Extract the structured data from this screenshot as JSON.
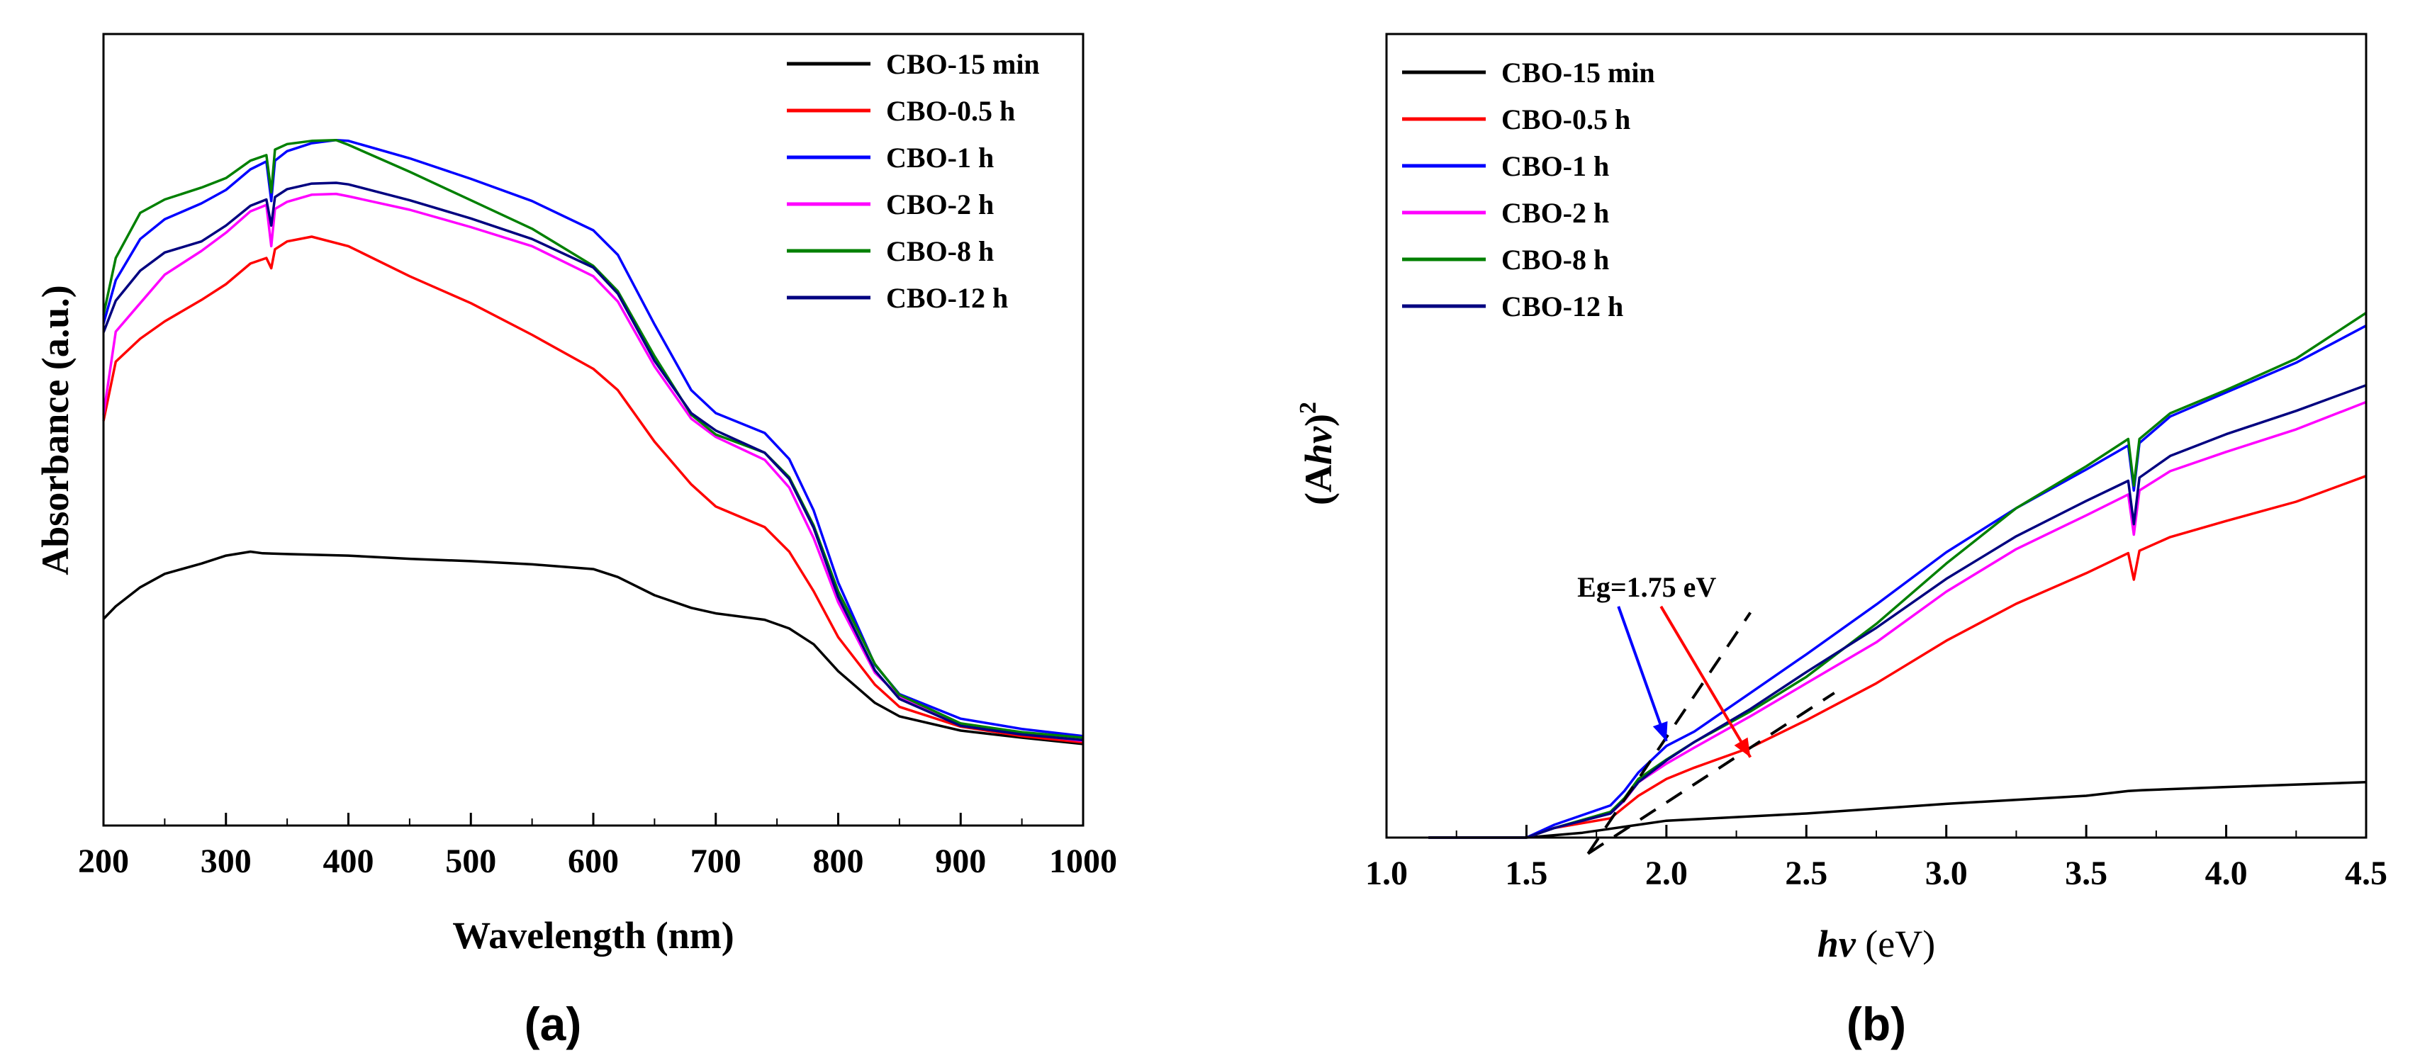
{
  "figure_labels": {
    "a": "(a)",
    "b": "(b)"
  },
  "chart_data": [
    {
      "type": "line",
      "panel": "a",
      "title": "",
      "xlabel": "Wavelength (nm)",
      "ylabel": "Absorbance (a.u.)",
      "xlim": [
        200,
        1000
      ],
      "ylim": [
        0,
        1.0
      ],
      "xticks": [
        200,
        300,
        400,
        500,
        600,
        700,
        800,
        900,
        1000
      ],
      "xtick_labels": [
        "200",
        "300",
        "400",
        "500",
        "600",
        "700",
        "800",
        "900",
        "1000"
      ],
      "yticks_shown": false,
      "legend_position": "top-right",
      "series": [
        {
          "name": "CBO-15 min",
          "color": "#000000",
          "x": [
            200,
            210,
            230,
            250,
            280,
            300,
            320,
            330,
            350,
            400,
            450,
            500,
            550,
            600,
            620,
            650,
            680,
            700,
            740,
            760,
            780,
            800,
            830,
            850,
            900,
            950,
            1000
          ],
          "y": [
            0.261,
            0.277,
            0.301,
            0.318,
            0.331,
            0.341,
            0.346,
            0.344,
            0.343,
            0.341,
            0.337,
            0.334,
            0.33,
            0.324,
            0.314,
            0.291,
            0.275,
            0.268,
            0.26,
            0.249,
            0.229,
            0.195,
            0.155,
            0.138,
            0.12,
            0.111,
            0.103
          ]
        },
        {
          "name": "CBO-0.5 h",
          "color": "#ff0000",
          "x": [
            200,
            210,
            230,
            250,
            280,
            300,
            320,
            333,
            337,
            340,
            350,
            370,
            400,
            450,
            500,
            550,
            600,
            620,
            650,
            680,
            700,
            740,
            760,
            780,
            800,
            830,
            850,
            900,
            950,
            1000
          ],
          "y": [
            0.511,
            0.586,
            0.615,
            0.637,
            0.664,
            0.684,
            0.71,
            0.717,
            0.704,
            0.728,
            0.738,
            0.744,
            0.732,
            0.694,
            0.66,
            0.62,
            0.577,
            0.55,
            0.485,
            0.431,
            0.403,
            0.377,
            0.346,
            0.296,
            0.238,
            0.178,
            0.15,
            0.125,
            0.113,
            0.105
          ]
        },
        {
          "name": "CBO-1 h",
          "color": "#0000ff",
          "x": [
            200,
            210,
            230,
            250,
            280,
            300,
            320,
            333,
            337,
            340,
            350,
            370,
            390,
            400,
            450,
            500,
            550,
            600,
            620,
            650,
            680,
            700,
            740,
            760,
            780,
            800,
            830,
            850,
            900,
            950,
            1000
          ],
          "y": [
            0.634,
            0.689,
            0.741,
            0.766,
            0.786,
            0.803,
            0.829,
            0.839,
            0.789,
            0.84,
            0.852,
            0.862,
            0.866,
            0.865,
            0.843,
            0.817,
            0.789,
            0.752,
            0.721,
            0.633,
            0.55,
            0.521,
            0.496,
            0.463,
            0.398,
            0.307,
            0.203,
            0.166,
            0.135,
            0.122,
            0.113
          ]
        },
        {
          "name": "CBO-2 h",
          "color": "#ff00ff",
          "x": [
            200,
            210,
            230,
            250,
            280,
            300,
            320,
            333,
            337,
            340,
            350,
            370,
            390,
            400,
            450,
            500,
            550,
            600,
            620,
            650,
            680,
            700,
            740,
            760,
            780,
            800,
            830,
            850,
            900,
            950,
            1000
          ],
          "y": [
            0.519,
            0.624,
            0.66,
            0.696,
            0.726,
            0.749,
            0.776,
            0.784,
            0.732,
            0.779,
            0.788,
            0.797,
            0.798,
            0.795,
            0.778,
            0.756,
            0.732,
            0.694,
            0.662,
            0.58,
            0.514,
            0.491,
            0.462,
            0.427,
            0.363,
            0.282,
            0.193,
            0.163,
            0.128,
            0.116,
            0.107
          ]
        },
        {
          "name": "CBO-8 h",
          "color": "#008000",
          "x": [
            200,
            210,
            230,
            250,
            280,
            300,
            320,
            333,
            337,
            340,
            350,
            370,
            390,
            400,
            450,
            500,
            550,
            600,
            620,
            650,
            680,
            700,
            740,
            760,
            780,
            800,
            830,
            850,
            900,
            950,
            1000
          ],
          "y": [
            0.645,
            0.717,
            0.774,
            0.791,
            0.806,
            0.818,
            0.84,
            0.847,
            0.8,
            0.854,
            0.861,
            0.865,
            0.866,
            0.86,
            0.826,
            0.79,
            0.754,
            0.707,
            0.675,
            0.593,
            0.519,
            0.494,
            0.471,
            0.44,
            0.379,
            0.296,
            0.204,
            0.165,
            0.129,
            0.118,
            0.111
          ]
        },
        {
          "name": "CBO-12 h",
          "color": "#000080",
          "x": [
            200,
            210,
            230,
            250,
            280,
            300,
            320,
            333,
            337,
            340,
            350,
            370,
            390,
            400,
            450,
            500,
            550,
            600,
            620,
            650,
            680,
            700,
            740,
            760,
            780,
            800,
            830,
            850,
            900,
            950,
            1000
          ],
          "y": [
            0.623,
            0.663,
            0.701,
            0.724,
            0.738,
            0.758,
            0.783,
            0.791,
            0.758,
            0.794,
            0.804,
            0.811,
            0.812,
            0.81,
            0.79,
            0.767,
            0.741,
            0.705,
            0.672,
            0.587,
            0.521,
            0.499,
            0.471,
            0.438,
            0.376,
            0.289,
            0.196,
            0.16,
            0.126,
            0.115,
            0.108
          ]
        }
      ]
    },
    {
      "type": "line",
      "panel": "b",
      "title": "",
      "xlabel_italic": "hv",
      "xlabel_unit": " (eV)",
      "ylabel_prefix": "(A",
      "ylabel_italic": "hv",
      "ylabel_close": ")",
      "ylabel_superscript": "2",
      "xlim": [
        1.0,
        4.5
      ],
      "ylim": [
        0,
        1.0
      ],
      "xticks": [
        1.0,
        1.5,
        2.0,
        2.5,
        3.0,
        3.5,
        4.0,
        4.5
      ],
      "xtick_labels": [
        "1.0",
        "1.5",
        "2.0",
        "2.5",
        "3.0",
        "3.5",
        "4.0",
        "4.5"
      ],
      "yticks_shown": false,
      "legend_position": "top-left",
      "annotation": {
        "text": "Eg=1.75 eV",
        "x": 1.93,
        "y": 0.3,
        "arrow_targets": [
          [
            2.0,
            0.12
          ],
          [
            2.3,
            0.1
          ]
        ],
        "arrow_colors": [
          "#0000ff",
          "#ff0000"
        ]
      },
      "tangent_lines": [
        {
          "x": [
            1.72,
            2.3
          ],
          "y": [
            -0.02,
            0.28
          ]
        },
        {
          "x": [
            1.72,
            2.6
          ],
          "y": [
            -0.02,
            0.18
          ]
        }
      ],
      "series": [
        {
          "name": "CBO-15 min",
          "color": "#000000",
          "x": [
            1.15,
            1.5,
            1.7,
            1.9,
            2.0,
            2.5,
            3.0,
            3.5,
            3.65,
            3.7,
            4.0,
            4.5
          ],
          "y": [
            0.0,
            0.0,
            0.006,
            0.016,
            0.021,
            0.03,
            0.042,
            0.052,
            0.058,
            0.059,
            0.063,
            0.069
          ]
        },
        {
          "name": "CBO-0.5 h",
          "color": "#ff0000",
          "x": [
            1.15,
            1.5,
            1.6,
            1.8,
            1.85,
            1.9,
            2.0,
            2.1,
            2.3,
            2.5,
            2.75,
            3.0,
            3.25,
            3.5,
            3.65,
            3.67,
            3.69,
            3.8,
            4.0,
            4.25,
            4.5
          ],
          "y": [
            0.0,
            0.0,
            0.012,
            0.024,
            0.038,
            0.052,
            0.073,
            0.087,
            0.112,
            0.146,
            0.192,
            0.245,
            0.291,
            0.329,
            0.354,
            0.321,
            0.357,
            0.374,
            0.394,
            0.418,
            0.45
          ]
        },
        {
          "name": "CBO-1 h",
          "color": "#0000ff",
          "x": [
            1.15,
            1.5,
            1.6,
            1.8,
            1.85,
            1.9,
            2.0,
            2.1,
            2.3,
            2.5,
            2.75,
            3.0,
            3.25,
            3.5,
            3.65,
            3.67,
            3.69,
            3.8,
            4.0,
            4.25,
            4.5
          ],
          "y": [
            0.0,
            0.0,
            0.016,
            0.04,
            0.058,
            0.081,
            0.114,
            0.132,
            0.18,
            0.228,
            0.29,
            0.355,
            0.41,
            0.458,
            0.488,
            0.432,
            0.491,
            0.524,
            0.554,
            0.591,
            0.637
          ]
        },
        {
          "name": "CBO-2 h",
          "color": "#ff00ff",
          "x": [
            1.15,
            1.5,
            1.6,
            1.8,
            1.85,
            1.9,
            2.0,
            2.1,
            2.3,
            2.5,
            2.75,
            3.0,
            3.25,
            3.5,
            3.65,
            3.67,
            3.69,
            3.8,
            4.0,
            4.25,
            4.5
          ],
          "y": [
            0.0,
            0.0,
            0.012,
            0.03,
            0.046,
            0.069,
            0.092,
            0.112,
            0.151,
            0.192,
            0.243,
            0.306,
            0.359,
            0.401,
            0.427,
            0.377,
            0.432,
            0.456,
            0.48,
            0.508,
            0.542
          ]
        },
        {
          "name": "CBO-8 h",
          "color": "#008000",
          "x": [
            1.15,
            1.5,
            1.6,
            1.8,
            1.85,
            1.9,
            2.0,
            2.1,
            2.3,
            2.5,
            2.75,
            3.0,
            3.25,
            3.5,
            3.65,
            3.67,
            3.69,
            3.8,
            4.0,
            4.25,
            4.5
          ],
          "y": [
            0.0,
            0.0,
            0.012,
            0.032,
            0.049,
            0.073,
            0.097,
            0.119,
            0.157,
            0.2,
            0.266,
            0.341,
            0.41,
            0.462,
            0.496,
            0.438,
            0.496,
            0.528,
            0.557,
            0.596,
            0.653
          ]
        },
        {
          "name": "CBO-12 h",
          "color": "#000080",
          "x": [
            1.15,
            1.5,
            1.6,
            1.8,
            1.85,
            1.9,
            2.0,
            2.1,
            2.3,
            2.5,
            2.75,
            3.0,
            3.25,
            3.5,
            3.65,
            3.67,
            3.69,
            3.8,
            4.0,
            4.25,
            4.5
          ],
          "y": [
            0.0,
            0.0,
            0.012,
            0.03,
            0.047,
            0.069,
            0.096,
            0.119,
            0.16,
            0.206,
            0.261,
            0.322,
            0.375,
            0.419,
            0.444,
            0.39,
            0.448,
            0.475,
            0.502,
            0.531,
            0.563
          ]
        }
      ]
    }
  ]
}
